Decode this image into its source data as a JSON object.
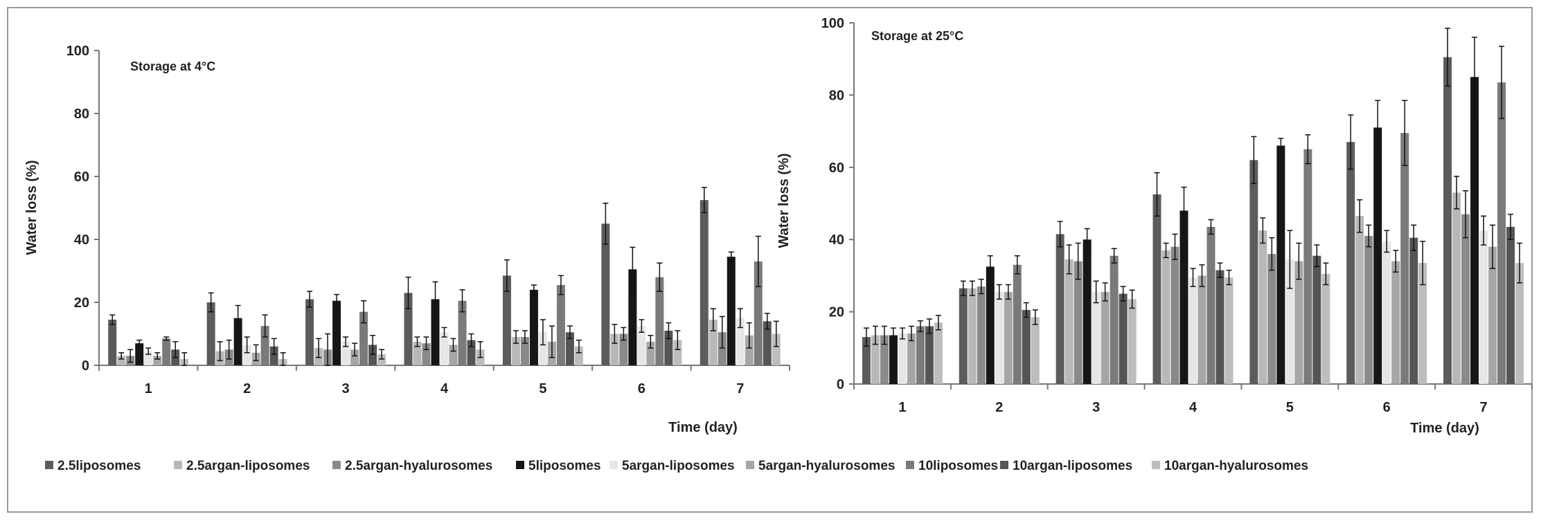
{
  "series_colors": [
    "#5c5c5c",
    "#b8b8b8",
    "#8a8a8a",
    "#161616",
    "#e6e6e6",
    "#a6a6a6",
    "#7a7a7a",
    "#555555",
    "#bdbdbd"
  ],
  "legend_position": "bottom",
  "chart_data": [
    {
      "type": "bar",
      "title": "Storage at 4°C",
      "xlabel": "Time (day)",
      "ylabel": "Water loss (%)",
      "ylim": [
        0,
        100
      ],
      "yticks": [
        "0",
        "20",
        "40",
        "60",
        "80",
        "100"
      ],
      "grid": false,
      "categories": [
        "1",
        "2",
        "3",
        "4",
        "5",
        "6",
        "7"
      ],
      "series": [
        {
          "name": "2.5liposomes",
          "values": [
            14.5,
            20,
            21,
            23,
            28.5,
            45,
            52.5
          ],
          "errors": [
            1.5,
            3,
            2.5,
            5,
            5,
            6.5,
            4
          ]
        },
        {
          "name": "2.5argan-liposomes",
          "values": [
            3,
            4.5,
            5.5,
            7.5,
            9,
            10,
            14.5
          ],
          "errors": [
            1,
            3,
            3,
            1.5,
            2,
            3,
            3.5
          ]
        },
        {
          "name": "2.5argan-hyalurosomes",
          "values": [
            3,
            5,
            5,
            7,
            9,
            10,
            10.5
          ],
          "errors": [
            2,
            3,
            5,
            2,
            2,
            2,
            5
          ]
        },
        {
          "name": "5liposomes",
          "values": [
            7,
            15,
            20.5,
            21,
            24,
            30.5,
            34.5
          ],
          "errors": [
            1,
            4,
            2,
            5.5,
            1.5,
            7,
            1.5
          ]
        },
        {
          "name": "5argan-liposomes",
          "values": [
            4.5,
            6.5,
            7.5,
            10.5,
            10.5,
            12.5,
            15
          ],
          "errors": [
            1,
            2.5,
            1.5,
            1.5,
            4,
            2,
            3
          ]
        },
        {
          "name": "5argan-hyalurosomes",
          "values": [
            3,
            4,
            5,
            6.5,
            7.5,
            7.5,
            9.5
          ],
          "errors": [
            1,
            2.5,
            2,
            2,
            5,
            2,
            4
          ]
        },
        {
          "name": "10liposomes",
          "values": [
            8.5,
            12.5,
            17,
            20.5,
            25.5,
            28,
            33
          ],
          "errors": [
            0.5,
            3.5,
            3.5,
            3.5,
            3,
            4.5,
            8
          ]
        },
        {
          "name": "10argan-liposomes",
          "values": [
            5,
            6,
            6.5,
            8,
            10.5,
            11,
            14
          ],
          "errors": [
            2.5,
            2.5,
            3,
            2,
            2,
            2.5,
            2.5
          ]
        },
        {
          "name": "10argan-hyalurosomes",
          "values": [
            2,
            2,
            3.5,
            5,
            6,
            8,
            10
          ],
          "errors": [
            2,
            2,
            1.5,
            2.5,
            2,
            3,
            4
          ]
        }
      ]
    },
    {
      "type": "bar",
      "title": "Storage at 25°C",
      "xlabel": "Time (day)",
      "ylabel": "Water loss (%)",
      "ylim": [
        0,
        100
      ],
      "yticks": [
        "0",
        "20",
        "40",
        "60",
        "80",
        "100"
      ],
      "grid": false,
      "categories": [
        "1",
        "2",
        "3",
        "4",
        "5",
        "6",
        "7"
      ],
      "series": [
        {
          "name": "2.5liposomes",
          "values": [
            13,
            26.5,
            41.5,
            52.5,
            62,
            67,
            90.5
          ],
          "errors": [
            2.5,
            2,
            3.5,
            6,
            6.5,
            7.5,
            8
          ]
        },
        {
          "name": "2.5argan-liposomes",
          "values": [
            13.5,
            26.5,
            34.5,
            37,
            42.5,
            46.5,
            53
          ],
          "errors": [
            2.5,
            2,
            4,
            2,
            3.5,
            4.5,
            4.5
          ]
        },
        {
          "name": "2.5argan-hyalurosomes",
          "values": [
            13.5,
            27,
            34,
            38,
            36,
            41,
            47
          ],
          "errors": [
            2.5,
            2,
            5,
            3.5,
            4.5,
            3,
            6.5
          ]
        },
        {
          "name": "5liposomes",
          "values": [
            13.5,
            32.5,
            40,
            48,
            66,
            71,
            85
          ],
          "errors": [
            2,
            3,
            3,
            6.5,
            2,
            7.5,
            11
          ]
        },
        {
          "name": "5argan-liposomes",
          "values": [
            14,
            25.5,
            25.5,
            29.5,
            34.5,
            39.5,
            42.5
          ],
          "errors": [
            1.5,
            2,
            3,
            2.5,
            8,
            3,
            4
          ]
        },
        {
          "name": "5argan-hyalurosomes",
          "values": [
            14,
            25.5,
            25.5,
            30,
            34,
            34,
            38
          ],
          "errors": [
            2,
            2,
            2.5,
            3,
            5,
            3,
            6
          ]
        },
        {
          "name": "10liposomes",
          "values": [
            16,
            33,
            35.5,
            43.5,
            65,
            69.5,
            83.5
          ],
          "errors": [
            1.5,
            2.5,
            2,
            2,
            4,
            9,
            10
          ]
        },
        {
          "name": "10argan-liposomes",
          "values": [
            16,
            20.5,
            25,
            31.5,
            35.5,
            40.5,
            43.5
          ],
          "errors": [
            2,
            2,
            2,
            2,
            3,
            3.5,
            3.5
          ]
        },
        {
          "name": "10argan-hyalurosomes",
          "values": [
            17,
            18.5,
            23.5,
            29.5,
            30.5,
            33.5,
            33.5
          ],
          "errors": [
            2,
            2,
            2.5,
            2,
            3,
            6,
            5.5
          ]
        }
      ]
    }
  ]
}
